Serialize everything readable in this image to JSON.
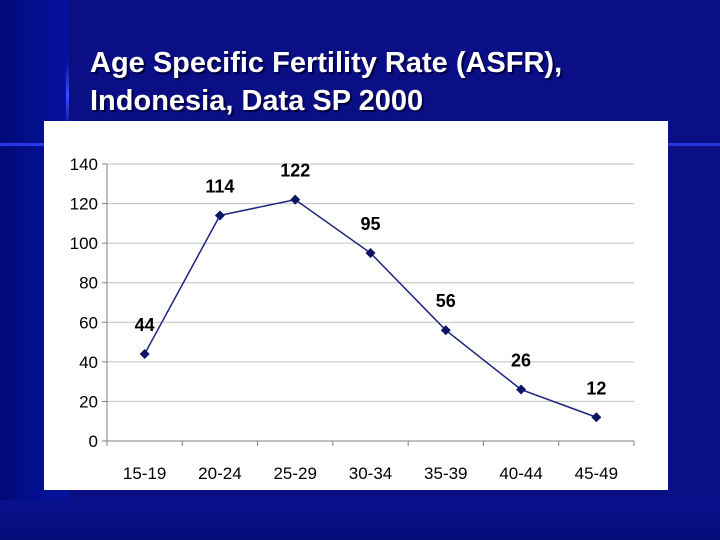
{
  "slide": {
    "title": "Age Specific Fertility Rate (ASFR),\nIndonesia, Data SP 2000"
  },
  "colors": {
    "background": "#0a0f86",
    "line": "#1a237e",
    "marker": "#0d1466",
    "grid": "#c0c0c0"
  },
  "chart_data": {
    "type": "line",
    "categories": [
      "15-19",
      "20-24",
      "25-29",
      "30-34",
      "35-39",
      "40-44",
      "45-49"
    ],
    "values": [
      44,
      114,
      122,
      95,
      56,
      26,
      12
    ],
    "data_labels": [
      "44",
      "114",
      "122",
      "95",
      "56",
      "26",
      "12"
    ],
    "ylim": [
      0,
      140
    ],
    "yticks": [
      0,
      20,
      40,
      60,
      80,
      100,
      120,
      140
    ],
    "grid": true,
    "marker": "diamond",
    "legend": "none"
  }
}
